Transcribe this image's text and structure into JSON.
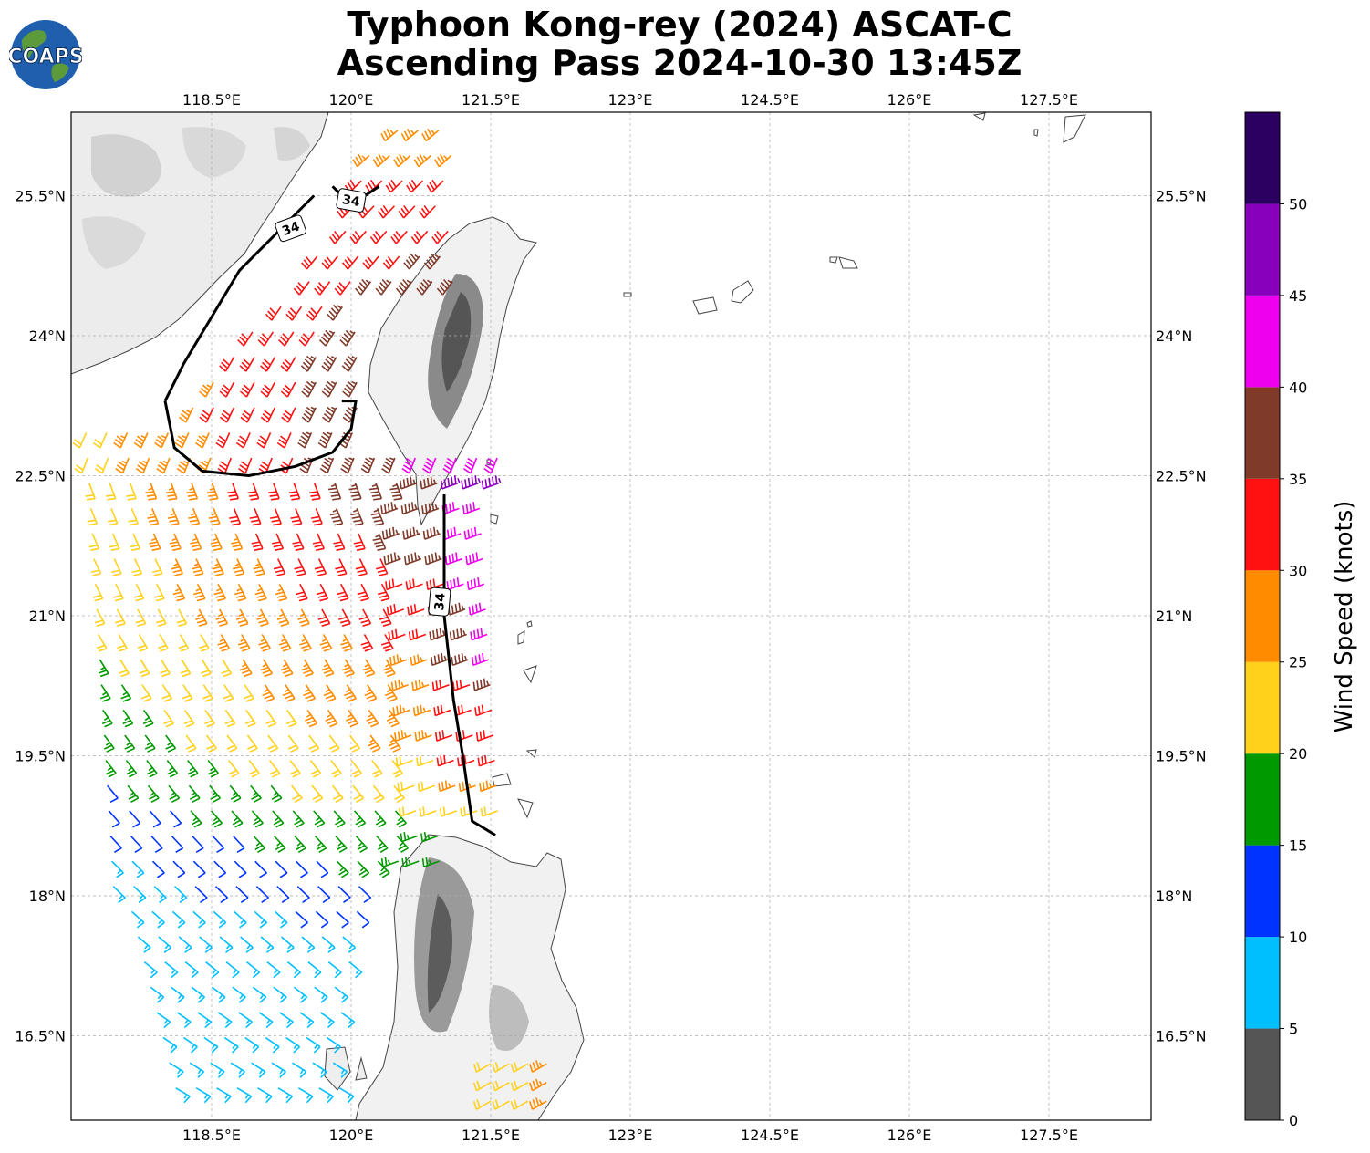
{
  "title": {
    "line1": "Typhoon Kong-rey (2024) ASCAT-C",
    "line2": "Ascending Pass 2024-10-30 13:45Z"
  },
  "logo": {
    "text": "COAPS",
    "icon": "globe-logo"
  },
  "map": {
    "lon_range": [
      117.0,
      128.6
    ],
    "lat_range": [
      15.6,
      26.4
    ],
    "lon_ticks": [
      {
        "value": 118.5,
        "label": "118.5°E"
      },
      {
        "value": 120.0,
        "label": "120°E"
      },
      {
        "value": 121.5,
        "label": "121.5°E"
      },
      {
        "value": 123.0,
        "label": "123°E"
      },
      {
        "value": 124.5,
        "label": "124.5°E"
      },
      {
        "value": 126.0,
        "label": "126°E"
      },
      {
        "value": 127.5,
        "label": "127.5°E"
      }
    ],
    "lat_ticks": [
      {
        "value": 25.5,
        "label": "25.5°N"
      },
      {
        "value": 24.0,
        "label": "24°N"
      },
      {
        "value": 22.5,
        "label": "22.5°N"
      },
      {
        "value": 21.0,
        "label": "21°N"
      },
      {
        "value": 19.5,
        "label": "19.5°N"
      },
      {
        "value": 18.0,
        "label": "18°N"
      },
      {
        "value": 16.5,
        "label": "16.5°N"
      }
    ],
    "gridlines": true,
    "contour_label": "34",
    "contour_34kt": [
      [
        [
          118.0,
          23.3
        ],
        [
          118.2,
          23.7
        ],
        [
          118.5,
          24.2
        ],
        [
          118.8,
          24.7
        ],
        [
          119.2,
          25.1
        ],
        [
          119.6,
          25.5
        ]
      ],
      [
        [
          118.0,
          23.3
        ],
        [
          118.1,
          22.8
        ],
        [
          118.4,
          22.55
        ],
        [
          118.9,
          22.5
        ],
        [
          119.4,
          22.6
        ],
        [
          119.8,
          22.75
        ],
        [
          120.0,
          23.0
        ],
        [
          120.05,
          23.3
        ],
        [
          119.9,
          23.3
        ]
      ],
      [
        [
          121.0,
          22.3
        ],
        [
          121.0,
          21.7
        ],
        [
          121.0,
          21.0
        ],
        [
          121.1,
          20.1
        ],
        [
          121.2,
          19.5
        ],
        [
          121.3,
          18.8
        ],
        [
          121.55,
          18.65
        ]
      ],
      [
        [
          119.8,
          25.6
        ],
        [
          120.0,
          25.4
        ],
        [
          120.3,
          25.6
        ]
      ]
    ]
  },
  "colorbar": {
    "label": "Wind Speed (knots)",
    "ticks": [
      "0",
      "5",
      "10",
      "15",
      "20",
      "25",
      "30",
      "35",
      "40",
      "45",
      "50"
    ],
    "bins": [
      {
        "min": 0,
        "max": 5,
        "color": "#555555"
      },
      {
        "min": 5,
        "max": 10,
        "color": "#00bfff"
      },
      {
        "min": 10,
        "max": 15,
        "color": "#0033ff"
      },
      {
        "min": 15,
        "max": 20,
        "color": "#009900"
      },
      {
        "min": 20,
        "max": 25,
        "color": "#ffd11a"
      },
      {
        "min": 25,
        "max": 30,
        "color": "#ff8c00"
      },
      {
        "min": 30,
        "max": 35,
        "color": "#ff1111"
      },
      {
        "min": 35,
        "max": 40,
        "color": "#7f3a2a"
      },
      {
        "min": 40,
        "max": 45,
        "color": "#ee00ee"
      },
      {
        "min": 45,
        "max": 50,
        "color": "#8800bb"
      },
      {
        "min": 50,
        "max": 55,
        "color": "#2b0060"
      }
    ]
  }
}
